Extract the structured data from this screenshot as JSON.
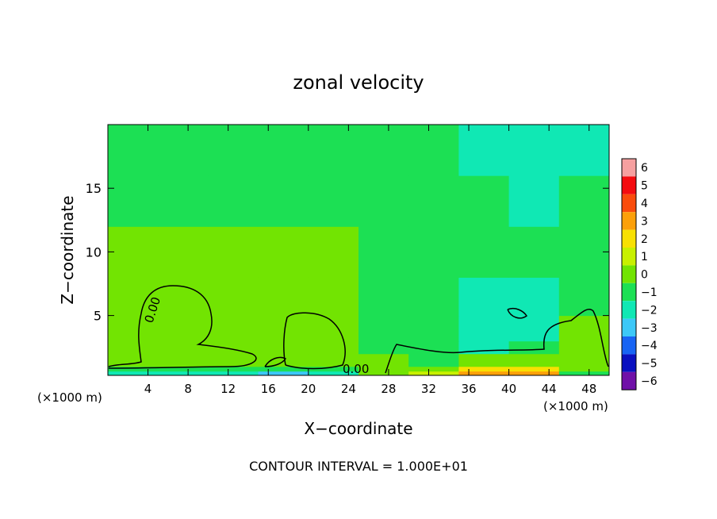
{
  "chart_data": {
    "type": "heatmap",
    "title": "zonal velocity",
    "xlabel": "X−coordinate",
    "ylabel": "Z−coordinate",
    "x_unit_left": "(×1000 m)",
    "x_unit_right": "(×1000 m)",
    "footer": "CONTOUR INTERVAL = 1.000E+01",
    "contour_label": "0.00",
    "xlim": [
      0,
      50
    ],
    "ylim": [
      0.3,
      20
    ],
    "x_ticks": [
      4,
      8,
      12,
      16,
      20,
      24,
      28,
      32,
      36,
      40,
      44,
      48
    ],
    "x_tick_labels": [
      "4",
      "8",
      "12",
      "16",
      "20",
      "24",
      "28",
      "32",
      "36",
      "40",
      "44",
      "48"
    ],
    "y_ticks": [
      5,
      10,
      15
    ],
    "y_tick_labels": [
      "5",
      "10",
      "15"
    ],
    "colorbar": {
      "levels": [
        6,
        5,
        4,
        3,
        2,
        1,
        0,
        -1,
        -2,
        -3,
        -4,
        -5,
        -6
      ],
      "labels": [
        "6",
        "5",
        "4",
        "3",
        "2",
        "1",
        "0",
        "−1",
        "−2",
        "−3",
        "−4",
        "−5",
        "−6"
      ],
      "colors": [
        "#f6a0a0",
        "#f40c10",
        "#fa4c0c",
        "#fca00a",
        "#f8e002",
        "#c8f000",
        "#72e402",
        "#1ce054",
        "#10e8b4",
        "#3cc8f8",
        "#1864f4",
        "#0a10c0",
        "#7010a8"
      ]
    },
    "field": {
      "x": [
        0,
        5,
        10,
        15,
        20,
        25,
        30,
        35,
        40,
        45,
        50
      ],
      "z": [
        0.3,
        1,
        2,
        3,
        5,
        8,
        12,
        16,
        20
      ],
      "values": [
        [
          0,
          -3,
          -1,
          -2,
          -3,
          0,
          0,
          2,
          4,
          2,
          -3
        ],
        [
          1,
          0,
          0,
          0,
          0,
          0,
          0,
          0,
          1,
          2,
          0
        ],
        [
          0,
          0,
          0,
          0,
          0,
          0,
          -1,
          -1,
          -1,
          0,
          0
        ],
        [
          0,
          1,
          0,
          0,
          1,
          0,
          -1,
          -1,
          -3,
          0,
          0
        ],
        [
          0,
          1,
          0,
          0,
          1,
          0,
          -1,
          -1,
          -2,
          -1,
          0
        ],
        [
          0,
          0,
          0,
          0,
          0,
          0,
          -1,
          -1,
          -2,
          -1,
          -1
        ],
        [
          -1,
          0,
          0,
          0,
          0,
          0,
          -1,
          -1,
          -1,
          -1,
          -1
        ],
        [
          -1,
          -1,
          -1,
          -1,
          -1,
          -1,
          -1,
          -1,
          -2,
          -2,
          -1
        ],
        [
          -2,
          -1,
          -1,
          -1,
          -1,
          -1,
          -1,
          -2,
          -2,
          -2,
          -2
        ]
      ]
    }
  }
}
